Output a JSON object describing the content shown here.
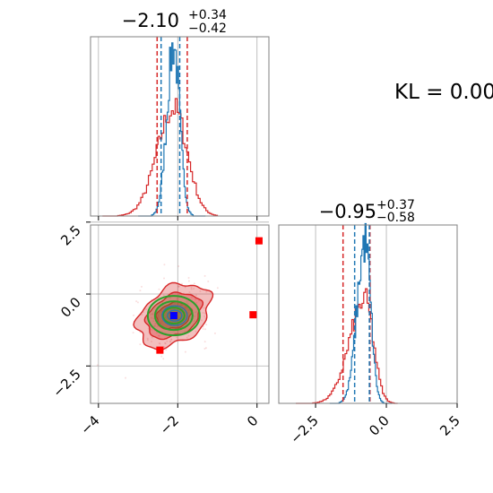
{
  "chart_data": {
    "type": "corner",
    "kl_label": "KL = 0.00",
    "colors": {
      "red": "#d62728",
      "blue": "#1f77b4",
      "green": "#2ca02c",
      "marker_blue": "#0000ff",
      "marker_red": "#ff0000"
    },
    "panels": {
      "param0_hist": {
        "title": {
          "value": "−2.10",
          "plus": "+0.34",
          "minus": "−0.42"
        },
        "xlim": [
          -4.2,
          0.3
        ],
        "red_quantiles": [
          -2.52,
          -1.76
        ],
        "blue_quantiles": [
          -2.42,
          -1.95
        ],
        "red_peak": -2.1,
        "blue_peak": -2.1
      },
      "joint": {
        "xlim": [
          -4.2,
          0.3
        ],
        "ylim": [
          -3.8,
          2.4
        ],
        "x_ticks": [
          -4,
          -2,
          0
        ],
        "x_tick_labels": [
          "−4",
          "−2",
          "0"
        ],
        "y_ticks": [
          2.5,
          0.0,
          -2.5
        ],
        "y_tick_labels": [
          "2.5",
          "0.0",
          "−2.5"
        ],
        "center": [
          -2.1,
          -0.75
        ],
        "blue_marker": [
          -2.1,
          -0.75
        ],
        "red_markers": [
          [
            0.05,
            1.85
          ],
          [
            -0.1,
            -0.72
          ],
          [
            -2.45,
            -1.95
          ],
          [
            -2.1,
            -0.75
          ]
        ]
      },
      "param1_hist": {
        "title": {
          "value": "−0.95",
          "plus": "+0.37",
          "minus": "−0.58"
        },
        "xlim": [
          -3.8,
          2.5
        ],
        "x_ticks": [
          -2.5,
          0.0,
          2.5
        ],
        "x_tick_labels": [
          "−2.5",
          "0.0",
          "2.5"
        ],
        "red_quantiles": [
          -1.53,
          -0.58
        ],
        "blue_quantiles": [
          -1.12,
          -0.6
        ],
        "red_peak": -0.75,
        "blue_peak": -0.75
      }
    }
  }
}
